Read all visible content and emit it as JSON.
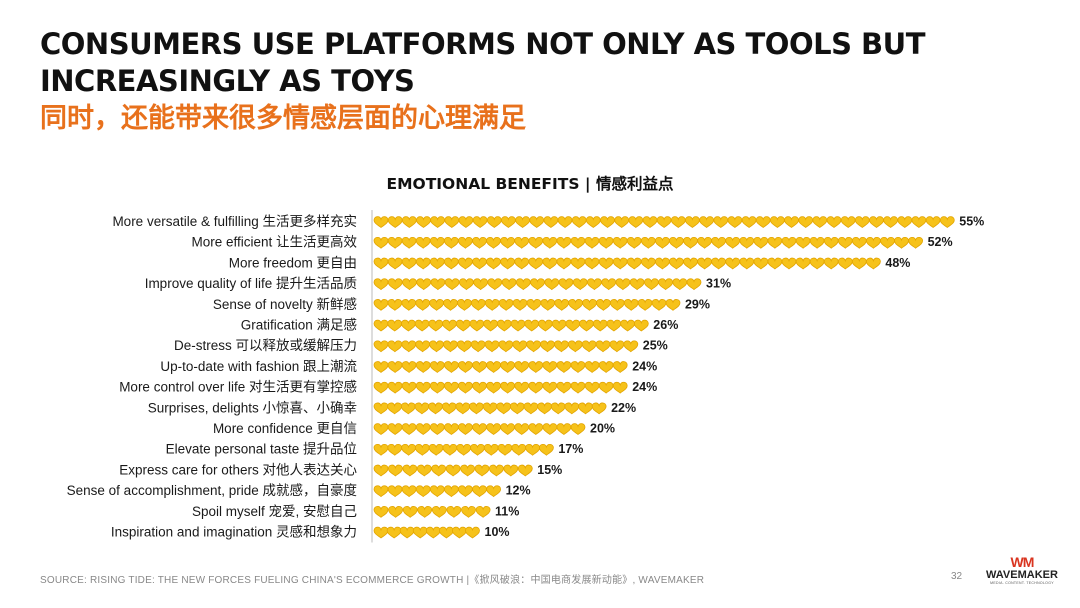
{
  "slide": {
    "title": "CONSUMERS USE PLATFORMS NOT ONLY AS TOOLS BUT INCREASINGLY AS TOYS",
    "subtitle": "同时，还能带来很多情感层面的心理满足",
    "footer_source": "SOURCE: RISING TIDE: THE NEW FORCES FUELING CHINA'S ECOMMERCE GROWTH |《掀风破浪：中国电商发展新动能》, WAVEMAKER",
    "page_number": "32",
    "logo": {
      "mark": "WM",
      "name": "WAVEMAKER",
      "tagline": "MEDIA. CONTENT. TECHNOLOGY"
    }
  },
  "colors": {
    "accent_orange": "#E8711C",
    "heart_fill": "#F6C21A",
    "heart_stroke": "#E2A400",
    "logo_red": "#D9341F",
    "axis": "#BBBBBB"
  },
  "icons": {
    "bar_unit": "heart-icon"
  },
  "chart_data": {
    "type": "bar",
    "orientation": "horizontal",
    "title": "EMOTIONAL BENEFITS | 情感利益点",
    "value_suffix": "%",
    "xlim": [
      0,
      55
    ],
    "categories": [
      "More versatile & fulfilling 生活更多样充实",
      "More efficient 让生活更高效",
      "More freedom 更自由",
      "Improve quality of life 提升生活品质",
      "Sense of novelty 新鲜感",
      "Gratification 满足感",
      "De-stress 可以释放或缓解压力",
      "Up-to-date with fashion 跟上潮流",
      "More control over life 对生活更有掌控感",
      "Surprises, delights 小惊喜、小确幸",
      "More confidence 更自信",
      "Elevate personal taste 提升品位",
      "Express care for others 对他人表达关心",
      "Sense of accomplishment, pride 成就感，自豪度",
      "Spoil myself 宠爱, 安慰自己",
      "Inspiration and imagination 灵感和想象力"
    ],
    "values": [
      55,
      52,
      48,
      31,
      29,
      26,
      25,
      24,
      24,
      22,
      20,
      17,
      15,
      12,
      11,
      10
    ]
  }
}
